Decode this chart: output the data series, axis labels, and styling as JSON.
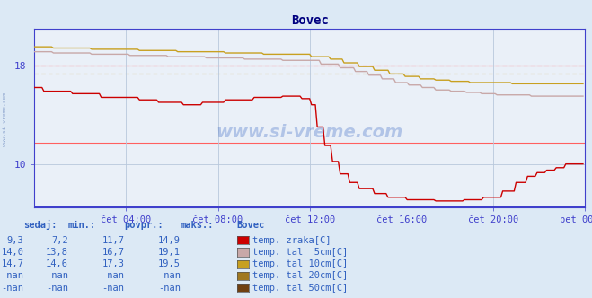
{
  "title": "Bovec",
  "bg_color": "#dce9f5",
  "plot_bg_color": "#eaf0f8",
  "grid_color": "#b8c8dc",
  "title_color": "#000080",
  "label_color": "#3060c0",
  "axis_color": "#4040cc",
  "ylim": [
    6.5,
    21.0
  ],
  "xlim_n": 288,
  "yticks": [
    10,
    18
  ],
  "xtick_labels": [
    "čet 04:00",
    "čet 08:00",
    "čet 12:00",
    "čet 16:00",
    "čet 20:00",
    "pet 00:00"
  ],
  "xtick_positions": [
    48,
    96,
    144,
    192,
    240,
    288
  ],
  "colors": {
    "zrak": "#cc0000",
    "tal5": "#c8a8a8",
    "tal10": "#c8a020",
    "tal20": "#a07820",
    "tal50": "#704010"
  },
  "hline_red1": 18.0,
  "hline_red2": 11.7,
  "hline_dotted_pink": 18.0,
  "hline_dotted_gold": 17.3,
  "legend_rows": [
    {
      "sedaj": "9,3",
      "min": "7,2",
      "povpr": "11,7",
      "maks": "14,9",
      "color": "#cc0000",
      "name": "temp. zraka[C]"
    },
    {
      "sedaj": "14,0",
      "min": "13,8",
      "povpr": "16,7",
      "maks": "19,1",
      "color": "#c8a8a8",
      "name": "temp. tal  5cm[C]"
    },
    {
      "sedaj": "14,7",
      "min": "14,6",
      "povpr": "17,3",
      "maks": "19,5",
      "color": "#c8a020",
      "name": "temp. tal 10cm[C]"
    },
    {
      "sedaj": "-nan",
      "min": "-nan",
      "povpr": "-nan",
      "maks": "-nan",
      "color": "#a07820",
      "name": "temp. tal 20cm[C]"
    },
    {
      "sedaj": "-nan",
      "min": "-nan",
      "povpr": "-nan",
      "maks": "-nan",
      "color": "#704010",
      "name": "temp. tal 50cm[C]"
    }
  ]
}
